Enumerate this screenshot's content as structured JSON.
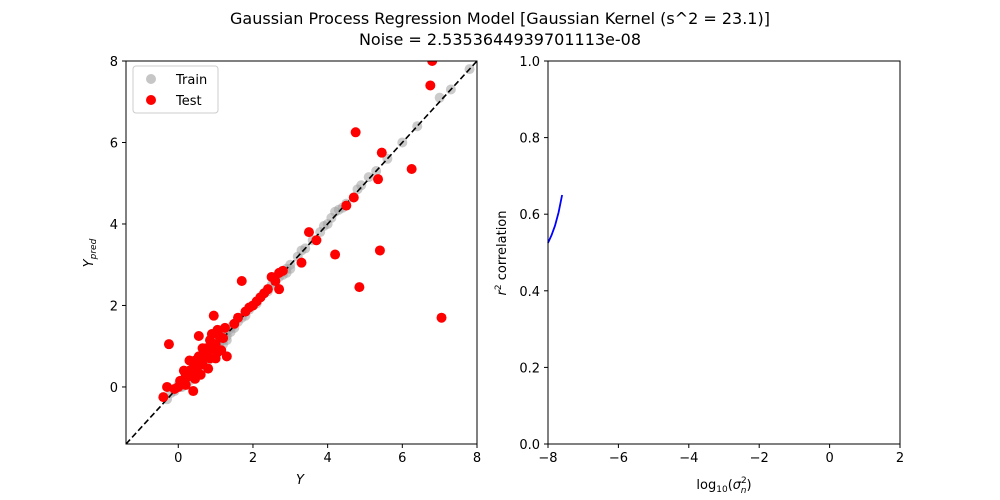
{
  "colors": {
    "train": "#a0a0a0",
    "test": "#ff0000",
    "curve": "#0000ff",
    "diag": "#000000"
  },
  "title": {
    "line1": "Gaussian Process Regression Model [Gaussian Kernel (s^2 = 23.1)]",
    "line2": "Noise = 2.5353644939701113e-08"
  },
  "chart_data": [
    {
      "type": "scatter",
      "xlabel": "Y",
      "ylabel_main": "Y",
      "ylabel_sub": "pred",
      "xlim": [
        -1.4,
        8.0
      ],
      "ylim": [
        -1.4,
        8.0
      ],
      "xticks": [
        0,
        2,
        4,
        6,
        8
      ],
      "yticks": [
        0,
        2,
        4,
        6,
        8
      ],
      "legend": {
        "placement": "top-left",
        "train_label": "Train",
        "test_label": "Test"
      },
      "reference_line": {
        "style": "dashed",
        "from": [
          -1.4,
          -1.4
        ],
        "to": [
          8.0,
          8.0
        ]
      },
      "series": [
        {
          "name": "Train",
          "points": [
            [
              -0.3,
              -0.3
            ],
            [
              -0.2,
              -0.15
            ],
            [
              -0.1,
              -0.1
            ],
            [
              0.0,
              0.05
            ],
            [
              0.05,
              0.0
            ],
            [
              0.1,
              0.15
            ],
            [
              0.15,
              0.1
            ],
            [
              0.2,
              0.2
            ],
            [
              0.25,
              0.25
            ],
            [
              0.3,
              0.3
            ],
            [
              0.35,
              0.4
            ],
            [
              0.4,
              0.35
            ],
            [
              0.45,
              0.5
            ],
            [
              0.5,
              0.45
            ],
            [
              0.55,
              0.6
            ],
            [
              0.6,
              0.55
            ],
            [
              0.65,
              0.7
            ],
            [
              0.7,
              0.65
            ],
            [
              0.75,
              0.8
            ],
            [
              0.8,
              0.75
            ],
            [
              0.85,
              0.9
            ],
            [
              0.9,
              0.85
            ],
            [
              0.95,
              1.0
            ],
            [
              1.0,
              0.95
            ],
            [
              1.05,
              1.1
            ],
            [
              1.1,
              1.05
            ],
            [
              1.15,
              1.2
            ],
            [
              1.2,
              1.15
            ],
            [
              1.25,
              1.3
            ],
            [
              1.3,
              1.25
            ],
            [
              1.35,
              1.4
            ],
            [
              1.4,
              1.35
            ],
            [
              1.45,
              1.5
            ],
            [
              1.5,
              1.45
            ],
            [
              1.6,
              1.6
            ],
            [
              1.7,
              1.7
            ],
            [
              1.8,
              1.75
            ],
            [
              1.9,
              1.9
            ],
            [
              2.0,
              2.0
            ],
            [
              2.1,
              2.05
            ],
            [
              2.2,
              2.2
            ],
            [
              2.3,
              2.3
            ],
            [
              2.4,
              2.35
            ],
            [
              2.5,
              2.5
            ],
            [
              2.6,
              2.55
            ],
            [
              2.7,
              2.7
            ],
            [
              2.8,
              2.75
            ],
            [
              2.9,
              2.9
            ],
            [
              3.0,
              3.0
            ],
            [
              3.2,
              3.2
            ],
            [
              3.3,
              3.35
            ],
            [
              3.4,
              3.4
            ],
            [
              3.6,
              3.6
            ],
            [
              3.8,
              3.8
            ],
            [
              3.9,
              3.95
            ],
            [
              4.0,
              4.0
            ],
            [
              4.1,
              4.15
            ],
            [
              4.2,
              4.3
            ],
            [
              4.3,
              4.35
            ],
            [
              4.4,
              4.4
            ],
            [
              4.5,
              4.5
            ],
            [
              4.8,
              4.85
            ],
            [
              4.9,
              4.95
            ],
            [
              5.1,
              5.15
            ],
            [
              5.3,
              5.3
            ],
            [
              5.6,
              5.6
            ],
            [
              6.0,
              6.0
            ],
            [
              6.4,
              6.4
            ],
            [
              7.0,
              7.1
            ],
            [
              7.3,
              7.3
            ],
            [
              7.8,
              7.8
            ],
            [
              0.3,
              0.2
            ],
            [
              0.6,
              0.45
            ],
            [
              0.8,
              0.65
            ],
            [
              1.0,
              0.85
            ],
            [
              0.4,
              0.5
            ],
            [
              0.2,
              0.05
            ],
            [
              0.7,
              0.8
            ],
            [
              1.2,
              1.05
            ],
            [
              0.5,
              0.3
            ],
            [
              0.9,
              0.75
            ],
            [
              1.3,
              1.15
            ],
            [
              0.1,
              0.0
            ],
            [
              0.6,
              0.7
            ],
            [
              1.1,
              1.2
            ],
            [
              2.9,
              2.8
            ],
            [
              3.0,
              2.9
            ],
            [
              1.0,
              1.1
            ],
            [
              0.3,
              0.15
            ]
          ]
        },
        {
          "name": "Test",
          "points": [
            [
              -0.4,
              -0.25
            ],
            [
              -0.25,
              1.05
            ],
            [
              -0.3,
              0.0
            ],
            [
              -0.1,
              -0.05
            ],
            [
              0.0,
              0.0
            ],
            [
              0.1,
              0.1
            ],
            [
              0.15,
              0.4
            ],
            [
              0.2,
              0.05
            ],
            [
              0.25,
              0.25
            ],
            [
              0.3,
              0.65
            ],
            [
              0.35,
              0.3
            ],
            [
              0.4,
              0.45
            ],
            [
              0.45,
              0.2
            ],
            [
              0.5,
              0.6
            ],
            [
              0.55,
              1.25
            ],
            [
              0.6,
              0.65
            ],
            [
              0.65,
              0.55
            ],
            [
              0.7,
              0.75
            ],
            [
              0.75,
              0.95
            ],
            [
              0.8,
              0.45
            ],
            [
              0.85,
              1.15
            ],
            [
              0.9,
              1.3
            ],
            [
              0.95,
              1.75
            ],
            [
              1.0,
              1.05
            ],
            [
              1.05,
              1.4
            ],
            [
              1.1,
              1.25
            ],
            [
              1.15,
              0.9
            ],
            [
              1.2,
              1.2
            ],
            [
              1.3,
              0.75
            ],
            [
              0.4,
              -0.1
            ],
            [
              0.6,
              0.3
            ],
            [
              0.8,
              0.85
            ],
            [
              1.0,
              0.7
            ],
            [
              0.5,
              0.45
            ],
            [
              0.7,
              0.85
            ],
            [
              0.9,
              0.95
            ],
            [
              0.3,
              0.4
            ],
            [
              0.2,
              0.3
            ],
            [
              0.65,
              0.95
            ],
            [
              0.45,
              0.65
            ],
            [
              1.5,
              1.55
            ],
            [
              1.6,
              1.7
            ],
            [
              1.7,
              2.6
            ],
            [
              1.8,
              1.85
            ],
            [
              1.9,
              1.95
            ],
            [
              2.0,
              2.0
            ],
            [
              2.1,
              2.1
            ],
            [
              2.2,
              2.2
            ],
            [
              2.3,
              2.3
            ],
            [
              2.4,
              2.4
            ],
            [
              2.5,
              2.7
            ],
            [
              2.6,
              2.6
            ],
            [
              2.7,
              2.8
            ],
            [
              2.7,
              2.4
            ],
            [
              2.8,
              2.85
            ],
            [
              3.3,
              3.05
            ],
            [
              3.5,
              3.8
            ],
            [
              3.7,
              3.6
            ],
            [
              4.2,
              3.25
            ],
            [
              4.5,
              4.45
            ],
            [
              4.7,
              4.65
            ],
            [
              4.75,
              6.25
            ],
            [
              4.85,
              2.45
            ],
            [
              5.35,
              5.1
            ],
            [
              5.4,
              3.35
            ],
            [
              5.45,
              5.75
            ],
            [
              6.25,
              5.35
            ],
            [
              6.75,
              7.4
            ],
            [
              6.8,
              8.0
            ],
            [
              7.05,
              1.7
            ],
            [
              1.05,
              0.85
            ],
            [
              1.25,
              1.45
            ],
            [
              0.85,
              0.7
            ],
            [
              0.55,
              0.75
            ],
            [
              0.05,
              0.15
            ]
          ]
        }
      ]
    },
    {
      "type": "line",
      "xlabel": "log",
      "xlabel_sub": "10",
      "xlabel_sigma": "σ",
      "xlabel_sigma_sup": "2",
      "xlabel_sigma_sub": "n",
      "ylabel_main": "r",
      "ylabel_sup": "2",
      "ylabel_rest": " correlation",
      "xlim": [
        -8,
        2
      ],
      "ylim": [
        0.0,
        1.0
      ],
      "xticks": [
        -8,
        -6,
        -4,
        -2,
        0,
        2
      ],
      "yticks": [
        0.0,
        0.2,
        0.4,
        0.6,
        0.8,
        1.0
      ],
      "series": [
        {
          "name": "r2",
          "x": [
            -8.0,
            -7.9,
            -7.8,
            -7.7,
            -7.6
          ],
          "values": [
            0.525,
            0.545,
            0.57,
            0.605,
            0.65
          ]
        }
      ]
    }
  ]
}
